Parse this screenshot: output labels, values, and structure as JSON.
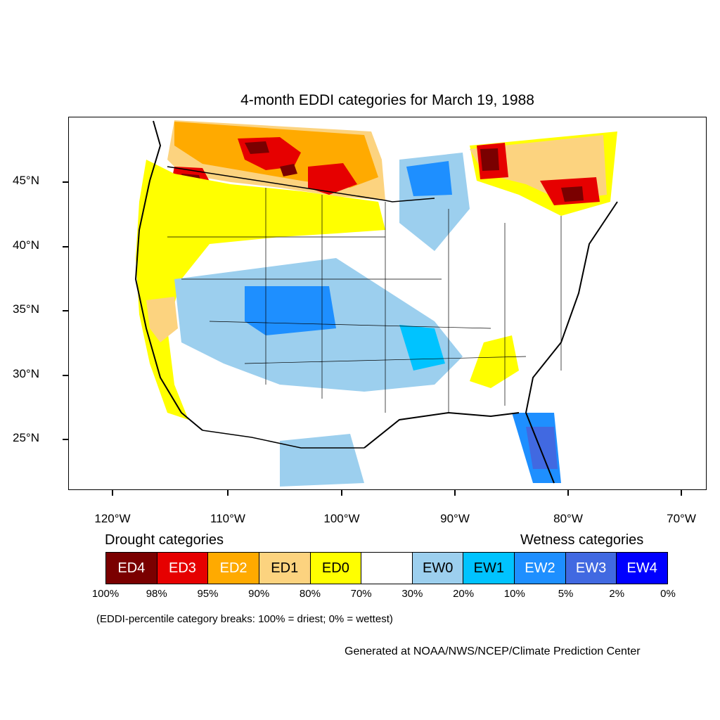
{
  "title": "4-month EDDI categories for March 19, 1988",
  "lat_labels": [
    "45°N",
    "40°N",
    "35°N",
    "30°N",
    "25°N"
  ],
  "lon_labels": [
    "120°W",
    "110°W",
    "100°W",
    "90°W",
    "80°W",
    "70°W"
  ],
  "legend": {
    "drought_heading": "Drought categories",
    "wetness_heading": "Wetness categories",
    "categories": [
      {
        "label": "ED4",
        "color": "#7a0000",
        "text_color": "#ffffff"
      },
      {
        "label": "ED3",
        "color": "#e60000",
        "text_color": "#ffffff"
      },
      {
        "label": "ED2",
        "color": "#ffaa00",
        "text_color": "#ffffff"
      },
      {
        "label": "ED1",
        "color": "#fcd37f",
        "text_color": "#000000"
      },
      {
        "label": "ED0",
        "color": "#ffff00",
        "text_color": "#000000"
      },
      {
        "label": "",
        "color": "#ffffff",
        "text_color": "#000000"
      },
      {
        "label": "EW0",
        "color": "#9ccfee",
        "text_color": "#000000"
      },
      {
        "label": "EW1",
        "color": "#00c3ff",
        "text_color": "#000000"
      },
      {
        "label": "EW2",
        "color": "#1e8fff",
        "text_color": "#ffffff"
      },
      {
        "label": "EW3",
        "color": "#4169e1",
        "text_color": "#ffffff"
      },
      {
        "label": "EW4",
        "color": "#0000ff",
        "text_color": "#ffffff"
      }
    ],
    "percentiles": [
      "100%",
      "98%",
      "95%",
      "90%",
      "80%",
      "70%",
      "30%",
      "20%",
      "10%",
      "5%",
      "2%",
      "0%"
    ]
  },
  "note": "(EDDI-percentile category breaks: 100% = driest; 0% = wettest)",
  "credit": "Generated at NOAA/NWS/NCEP/Climate Prediction Center"
}
